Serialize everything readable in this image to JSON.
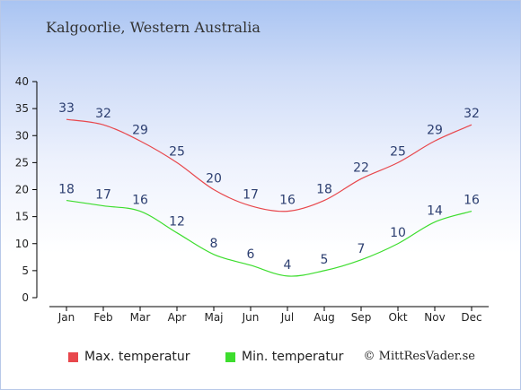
{
  "title": "Kalgoorlie, Western Australia",
  "credit": "© MittResVader.se",
  "colors": {
    "max": "#e8474c",
    "min": "#3ddd2e"
  },
  "chart_data": {
    "type": "line",
    "title": "Kalgoorlie, Western Australia",
    "xlabel": "",
    "ylabel": "",
    "categories": [
      "Jan",
      "Feb",
      "Mar",
      "Apr",
      "Maj",
      "Jun",
      "Jul",
      "Aug",
      "Sep",
      "Okt",
      "Nov",
      "Dec"
    ],
    "yticks": [
      0,
      5,
      10,
      15,
      20,
      25,
      30,
      35,
      40
    ],
    "ylim": [
      0,
      40
    ],
    "grid": false,
    "legend_position": "bottom",
    "series": [
      {
        "name": "Max. temperatur",
        "color": "#e8474c",
        "values": [
          33,
          32,
          29,
          25,
          20,
          17,
          16,
          18,
          22,
          25,
          29,
          32
        ]
      },
      {
        "name": "Min. temperatur",
        "color": "#3ddd2e",
        "values": [
          18,
          17,
          16,
          12,
          8,
          6,
          4,
          5,
          7,
          10,
          14,
          16
        ]
      }
    ]
  }
}
